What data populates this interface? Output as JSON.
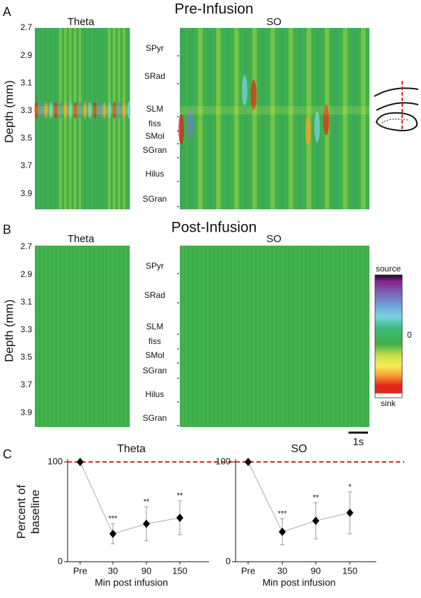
{
  "panels": {
    "a": {
      "letter": "A",
      "title": "Pre-Infusion",
      "left_label": "Theta",
      "right_label": "SO"
    },
    "b": {
      "letter": "B",
      "title": "Post-Infusion",
      "left_label": "Theta",
      "right_label": "SO"
    },
    "c": {
      "letter": "C"
    }
  },
  "depth_axis": {
    "label": "Depth (mm)",
    "ticks": [
      "2.7",
      "2.9",
      "3.1",
      "3.3",
      "3.5",
      "3.7",
      "3.9"
    ]
  },
  "layers": [
    "SPyr",
    "SRad",
    "SLM",
    "fiss",
    "SMol",
    "SGran",
    "Hilus",
    "SGran"
  ],
  "colorbar": {
    "top": "source",
    "middle": "0",
    "bottom": "sink"
  },
  "scalebar": "1s",
  "chart_data": [
    {
      "type": "line",
      "title": "Theta",
      "xlabel": "Min post infusion",
      "ylabel": "Percent of baseline",
      "categories": [
        "Pre",
        "30",
        "90",
        "150"
      ],
      "values": [
        100,
        28,
        38,
        44
      ],
      "errors": [
        null,
        10,
        17,
        17
      ],
      "annotations": [
        null,
        "***",
        "**",
        "**"
      ],
      "color": "#000000",
      "line_color": "#aaaaaa",
      "reference_line": 100,
      "reference_color": "#e02020",
      "ylim": [
        0,
        100
      ],
      "yticks": [
        0,
        100
      ]
    },
    {
      "type": "line",
      "title": "SO",
      "xlabel": "Min post infusion",
      "categories": [
        "Pre",
        "30",
        "90",
        "150"
      ],
      "values": [
        100,
        30,
        41,
        49
      ],
      "errors": [
        null,
        13,
        18,
        21
      ],
      "annotations": [
        null,
        "***",
        "**",
        "*"
      ],
      "color": "#000000",
      "line_color": "#aaaaaa",
      "reference_line": 100,
      "reference_color": "#e02020",
      "ylim": [
        0,
        100
      ],
      "yticks": [
        0,
        100
      ]
    }
  ]
}
